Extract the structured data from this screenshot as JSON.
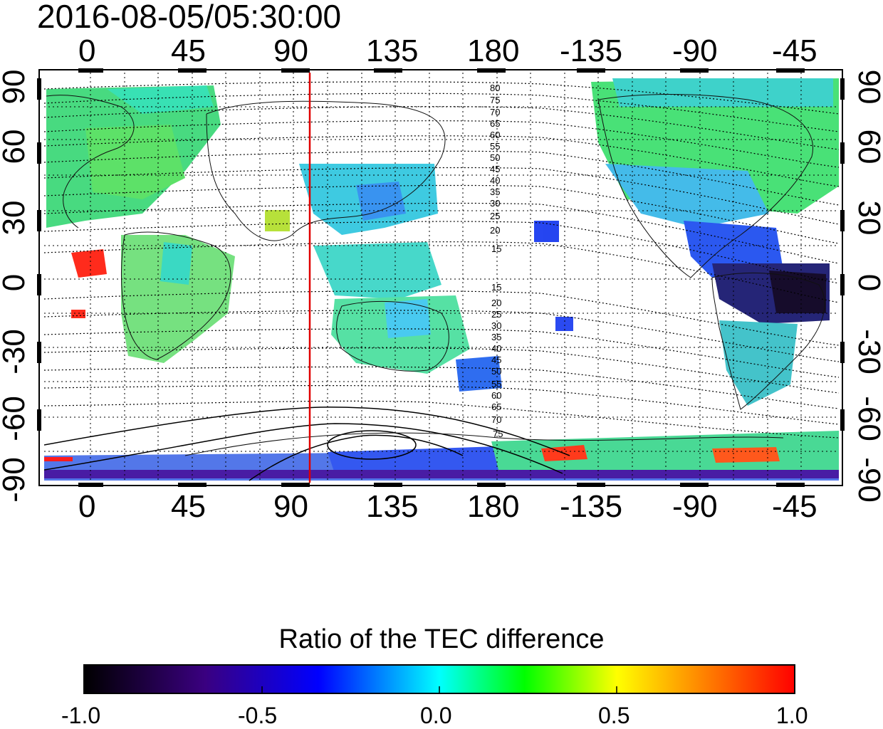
{
  "title": "2016-08-05/05:30:00",
  "map": {
    "lon_ticks": [
      "0",
      "45",
      "90",
      "135",
      "180",
      "-135",
      "-90",
      "-45"
    ],
    "lat_ticks": [
      "90",
      "60",
      "30",
      "0",
      "-30",
      "-60",
      "-90"
    ],
    "contour_labels_north": [
      "80",
      "75",
      "70",
      "65",
      "60",
      "55",
      "50",
      "45",
      "40",
      "35",
      "30",
      "25",
      "20",
      "15"
    ],
    "contour_labels_south": [
      "15",
      "20",
      "25",
      "30",
      "35",
      "40",
      "45",
      "50",
      "55",
      "60",
      "65",
      "70",
      "75"
    ],
    "terminator_color": "#e00000"
  },
  "colorbar": {
    "title": "Ratio of the TEC difference",
    "ticks": [
      "-1.0",
      "-0.5",
      "0.0",
      "0.5",
      "1.0"
    ],
    "stops": [
      "#000000",
      "#3a0080",
      "#0000ff",
      "#00ffff",
      "#00ff00",
      "#ffff00",
      "#ff0000"
    ]
  }
}
